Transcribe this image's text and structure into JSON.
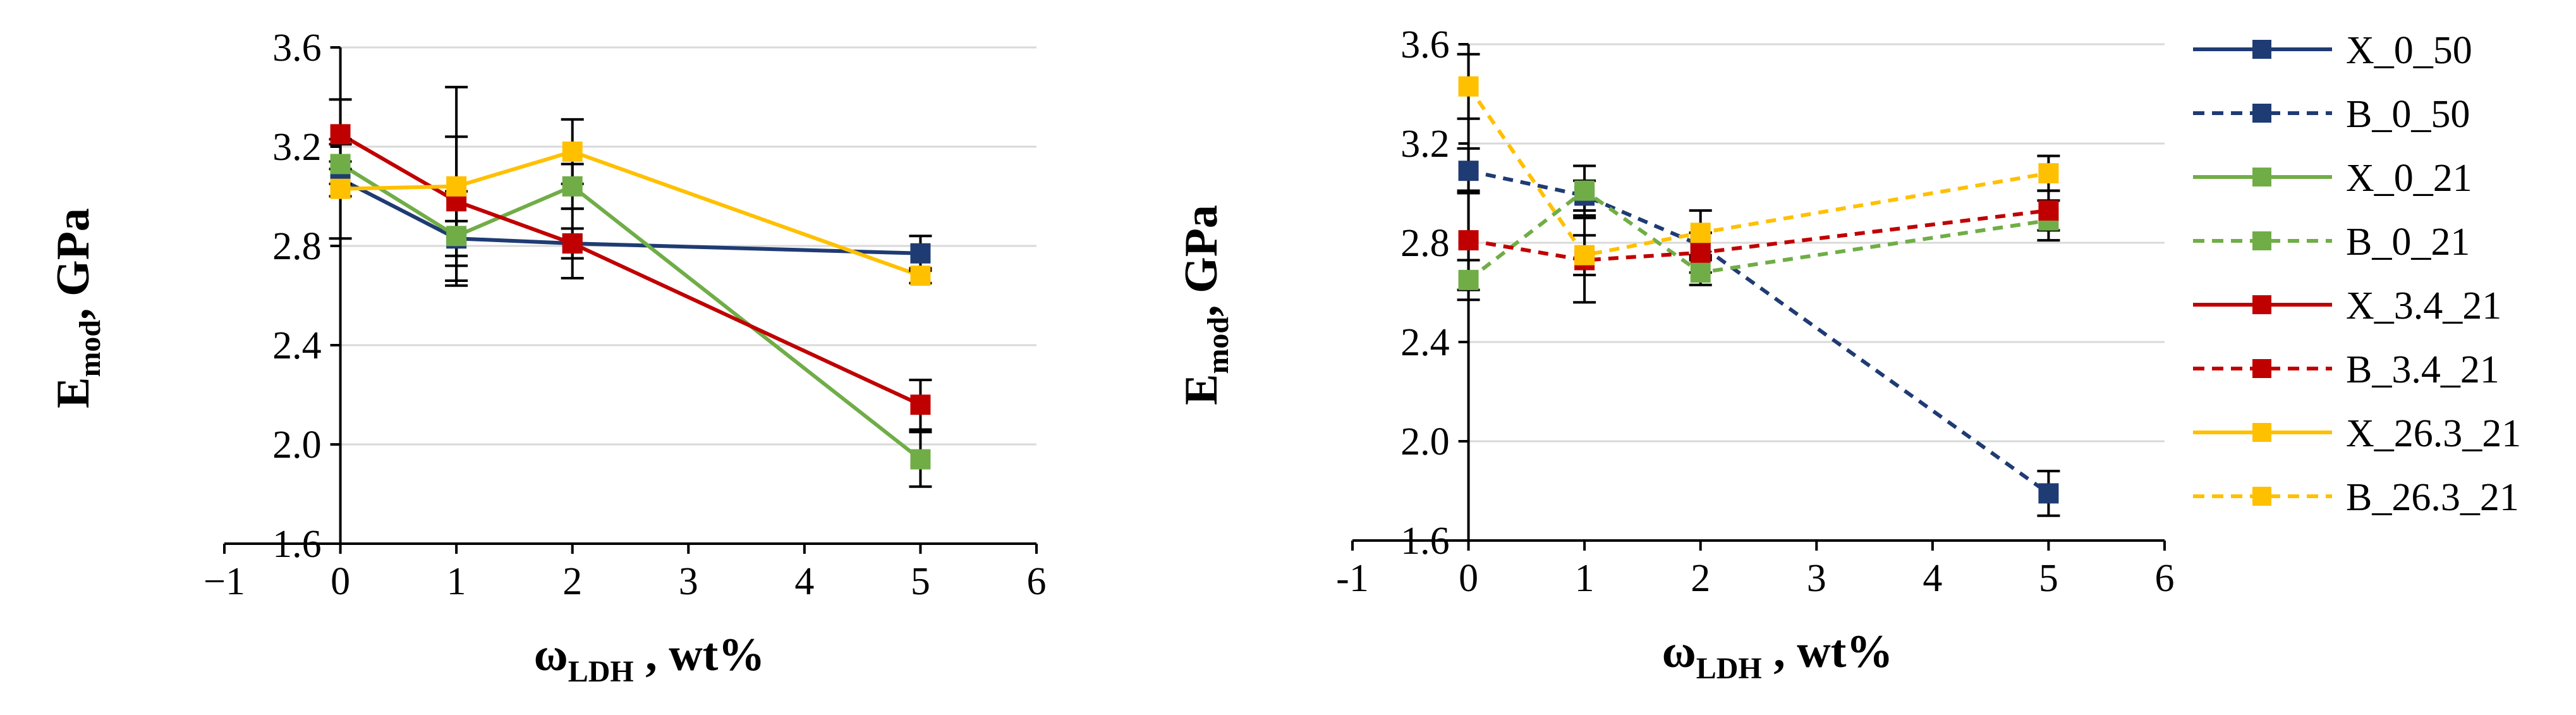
{
  "chart_data": [
    {
      "type": "line",
      "panel": "left",
      "title": "",
      "xlabel": "ω",
      "xlabel_sub": "LDH",
      "xlabel_suffix": " , wt%",
      "ylabel": "E",
      "ylabel_sub": "mod",
      "ylabel_suffix": ", GPa",
      "xlim": [
        -1,
        6
      ],
      "ylim": [
        1.6,
        3.6
      ],
      "xticks": [
        -1,
        0,
        1,
        2,
        3,
        4,
        5,
        6
      ],
      "xtick_labels": [
        "−1",
        "0",
        "1",
        "2",
        "3",
        "4",
        "5",
        "6"
      ],
      "yticks": [
        1.6,
        2.0,
        2.4,
        2.8,
        3.2,
        3.6
      ],
      "ytick_labels": [
        "1.6",
        "2.0",
        "2.4",
        "2.8",
        "3.2",
        "3.6"
      ],
      "grid": "horizontal",
      "series": [
        {
          "name": "X_0_50",
          "color": "#1f3b73",
          "dash": false,
          "x": [
            0,
            1,
            2,
            5
          ],
          "y": [
            3.07,
            2.83,
            2.81,
            2.77
          ],
          "err": [
            0.07,
            0.07,
            0.06,
            0.07
          ]
        },
        {
          "name": "X_0_21",
          "color": "#70ad47",
          "dash": false,
          "x": [
            0,
            1,
            2,
            5
          ],
          "y": [
            3.13,
            2.84,
            3.04,
            1.94
          ],
          "err": [
            0.08,
            0.18,
            0.09,
            0.11
          ]
        },
        {
          "name": "X_3.4_21",
          "color": "#c00000",
          "dash": false,
          "x": [
            0,
            1,
            2,
            5
          ],
          "y": [
            3.25,
            2.98,
            2.81,
            2.16
          ],
          "err": [
            0.14,
            0.26,
            0.14,
            0.1
          ]
        },
        {
          "name": "X_26.3_21",
          "color": "#ffc000",
          "dash": false,
          "x": [
            0,
            1,
            2,
            5
          ],
          "y": [
            3.03,
            3.04,
            3.18,
            2.68
          ],
          "err": [
            0.2,
            0.4,
            0.13,
            0.03
          ]
        }
      ]
    },
    {
      "type": "line",
      "panel": "right",
      "title": "",
      "xlabel": "ω",
      "xlabel_sub": "LDH",
      "xlabel_suffix": " , wt%",
      "ylabel": "E",
      "ylabel_sub": "mod",
      "ylabel_suffix": ", GPa",
      "xlim": [
        -1,
        6
      ],
      "ylim": [
        1.6,
        3.6
      ],
      "xticks": [
        -1,
        0,
        1,
        2,
        3,
        4,
        5,
        6
      ],
      "xtick_labels": [
        "-1",
        "0",
        "1",
        "2",
        "3",
        "4",
        "5",
        "6"
      ],
      "yticks": [
        1.6,
        2.0,
        2.4,
        2.8,
        3.2,
        3.6
      ],
      "ytick_labels": [
        "1.6",
        "2.0",
        "2.4",
        "2.8",
        "3.2",
        "3.6"
      ],
      "grid": "horizontal",
      "series": [
        {
          "name": "B_0_50",
          "color": "#1f3b73",
          "dash": true,
          "x": [
            0,
            1,
            2,
            5
          ],
          "y": [
            3.09,
            2.99,
            2.79,
            1.79
          ],
          "err": [
            0.09,
            0.06,
            0.05,
            0.09
          ]
        },
        {
          "name": "B_0_21",
          "color": "#70ad47",
          "dash": true,
          "x": [
            0,
            1,
            2,
            5
          ],
          "y": [
            2.65,
            3.01,
            2.68,
            2.89
          ],
          "err": [
            0.08,
            0.1,
            0.05,
            0.08
          ]
        },
        {
          "name": "B_3.4_21",
          "color": "#c00000",
          "dash": true,
          "x": [
            0,
            1,
            2,
            5
          ],
          "y": [
            2.81,
            2.73,
            2.76,
            2.93
          ],
          "err": [
            0.2,
            0.17,
            0.08,
            0.08
          ]
        },
        {
          "name": "B_26.3_21",
          "color": "#ffc000",
          "dash": true,
          "x": [
            0,
            1,
            2,
            5
          ],
          "y": [
            3.43,
            2.75,
            2.84,
            3.08
          ],
          "err": [
            0.13,
            0.08,
            0.09,
            0.07
          ]
        }
      ]
    }
  ],
  "legend": {
    "position": "right",
    "entries": [
      {
        "name": "X_0_50",
        "color": "#1f3b73",
        "dash": false
      },
      {
        "name": "B_0_50",
        "color": "#1f3b73",
        "dash": true
      },
      {
        "name": "X_0_21",
        "color": "#70ad47",
        "dash": false
      },
      {
        "name": "B_0_21",
        "color": "#70ad47",
        "dash": true
      },
      {
        "name": "X_3.4_21",
        "color": "#c00000",
        "dash": false
      },
      {
        "name": "B_3.4_21",
        "color": "#c00000",
        "dash": true
      },
      {
        "name": "X_26.3_21",
        "color": "#ffc000",
        "dash": false
      },
      {
        "name": "B_26.3_21",
        "color": "#ffc000",
        "dash": true
      }
    ]
  }
}
